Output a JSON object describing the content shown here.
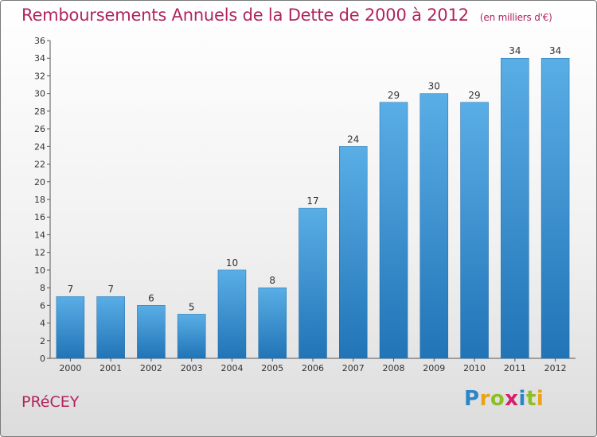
{
  "header": {
    "title": "Remboursements Annuels de la Dette de 2000 à 2012",
    "unit": "(en milliers d'€)"
  },
  "footer": {
    "town": "PRéCEY",
    "logo": "Proxiti",
    "logo_letters": [
      {
        "ch": "P",
        "color": "#2a86c8"
      },
      {
        "ch": "r",
        "color": "#e8a318"
      },
      {
        "ch": "o",
        "color": "#8cbf26"
      },
      {
        "ch": "x",
        "color": "#d81f6a"
      },
      {
        "ch": "i",
        "color": "#2a86c8"
      },
      {
        "ch": "t",
        "color": "#8cbf26"
      },
      {
        "ch": "i",
        "color": "#e8a318"
      }
    ]
  },
  "colors": {
    "bar_top": "#5aaee6",
    "bar_bottom": "#2174b6",
    "accent": "#b0245e"
  },
  "chart_data": {
    "type": "bar",
    "title": "Remboursements Annuels de la Dette de 2000 à 2012",
    "categories": [
      "2000",
      "2001",
      "2002",
      "2003",
      "2004",
      "2005",
      "2006",
      "2007",
      "2008",
      "2009",
      "2010",
      "2011",
      "2012"
    ],
    "values": [
      7,
      7,
      6,
      5,
      10,
      8,
      17,
      24,
      29,
      30,
      29,
      34,
      34
    ],
    "ylim": [
      0,
      36
    ],
    "ytick_step": 2,
    "grid": false,
    "legend": "none"
  }
}
